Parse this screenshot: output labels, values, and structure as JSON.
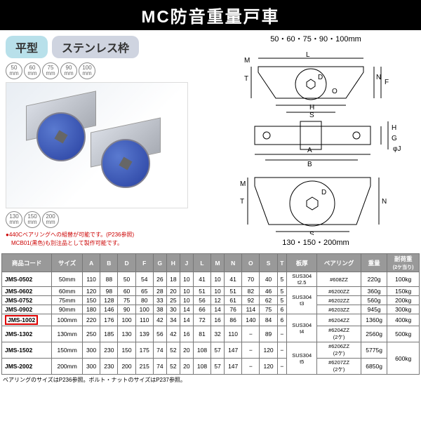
{
  "title": "MC防音重量戸車",
  "badges": {
    "type": "平型",
    "frame": "ステンレス枠"
  },
  "topSizes": [
    "50",
    "60",
    "75",
    "90",
    "100"
  ],
  "botSizes": [
    "130",
    "150",
    "200"
  ],
  "sizeUnit": "mm",
  "notes": [
    "●440Cベアリングへの組替が可能です。(P236参照)",
    "　MCB01(黒色)も別注品として製作可能です。"
  ],
  "diaLabelTop": "50・60・75・90・100mm",
  "diaLabelBot": "130・150・200mm",
  "diaLetters": {
    "M": "M",
    "T": "T",
    "D": "D",
    "O": "O",
    "H": "H",
    "S": "S",
    "L": "L",
    "N": "N",
    "F": "F",
    "A": "A",
    "B": "B",
    "J": "J",
    "G": "G",
    "phiJ": "φJ"
  },
  "headers": [
    "商品コード",
    "サイズ",
    "A",
    "B",
    "D",
    "F",
    "G",
    "H",
    "J",
    "L",
    "M",
    "N",
    "O",
    "S",
    "T",
    "板厚",
    "ベアリング",
    "重量",
    "耐荷重"
  ],
  "loadNote": "(2ケ当り)",
  "rows": [
    {
      "code": "JMS-0502",
      "size": "50mm",
      "A": "110",
      "B": "88",
      "D": "50",
      "F": "54",
      "G": "26",
      "H": "18",
      "J": "10",
      "L": "41",
      "M": "10",
      "N": "41",
      "O": "70",
      "S": "40",
      "T": "5",
      "plate": "SUS304 t2.5",
      "bearing": "#608ZZ",
      "wt": "220g",
      "load": "100kg"
    },
    {
      "code": "JMS-0602",
      "size": "60mm",
      "A": "120",
      "B": "98",
      "D": "60",
      "F": "65",
      "G": "28",
      "H": "20",
      "J": "10",
      "L": "51",
      "M": "10",
      "N": "51",
      "O": "82",
      "S": "46",
      "T": "5",
      "plate": "",
      "bearing": "#6200ZZ",
      "wt": "360g",
      "load": "150kg"
    },
    {
      "code": "JMS-0752",
      "size": "75mm",
      "A": "150",
      "B": "128",
      "D": "75",
      "F": "80",
      "G": "33",
      "H": "25",
      "J": "10",
      "L": "56",
      "M": "12",
      "N": "61",
      "O": "92",
      "S": "62",
      "T": "5",
      "plate": "SUS304 t3",
      "bearing": "#6202ZZ",
      "wt": "560g",
      "load": "200kg"
    },
    {
      "code": "JMS-0902",
      "size": "90mm",
      "A": "180",
      "B": "146",
      "D": "90",
      "F": "100",
      "G": "38",
      "H": "30",
      "J": "14",
      "L": "66",
      "M": "14",
      "N": "76",
      "O": "114",
      "S": "75",
      "T": "6",
      "plate": "",
      "bearing": "#6203ZZ",
      "wt": "945g",
      "load": "300kg"
    },
    {
      "code": "JMS-1002",
      "size": "100mm",
      "A": "220",
      "B": "176",
      "D": "100",
      "F": "110",
      "G": "42",
      "H": "34",
      "J": "14",
      "L": "72",
      "M": "16",
      "N": "86",
      "O": "140",
      "S": "84",
      "T": "6",
      "plate": "SUS304 t4",
      "bearing": "#6204ZZ",
      "wt": "1360g",
      "load": "400kg",
      "hl": true
    },
    {
      "code": "JMS-1302",
      "size": "130mm",
      "A": "250",
      "B": "185",
      "D": "130",
      "F": "139",
      "G": "56",
      "H": "42",
      "J": "16",
      "L": "81",
      "M": "32",
      "N": "110",
      "O": "−",
      "S": "89",
      "T": "−",
      "plate": "",
      "bearing": "#6204ZZ (2ケ)",
      "wt": "2560g",
      "load": "500kg"
    },
    {
      "code": "JMS-1502",
      "size": "150mm",
      "A": "300",
      "B": "230",
      "D": "150",
      "F": "175",
      "G": "74",
      "H": "52",
      "J": "20",
      "L": "108",
      "M": "57",
      "N": "147",
      "O": "−",
      "S": "120",
      "T": "−",
      "plate": "SUS304 t5",
      "bearing": "#6206ZZ (2ケ)",
      "wt": "5775g",
      "load": "600kg"
    },
    {
      "code": "JMS-2002",
      "size": "200mm",
      "A": "300",
      "B": "230",
      "D": "200",
      "F": "215",
      "G": "74",
      "H": "52",
      "J": "20",
      "L": "108",
      "M": "57",
      "N": "147",
      "O": "−",
      "S": "120",
      "T": "−",
      "plate": "",
      "bearing": "#6207ZZ (2ケ)",
      "wt": "6850g",
      "load": ""
    }
  ],
  "footnote": "ベアリングのサイズはP236参照。ボルト・ナットのサイズはP237参照。",
  "colors": {
    "highlight": "#d00000"
  }
}
